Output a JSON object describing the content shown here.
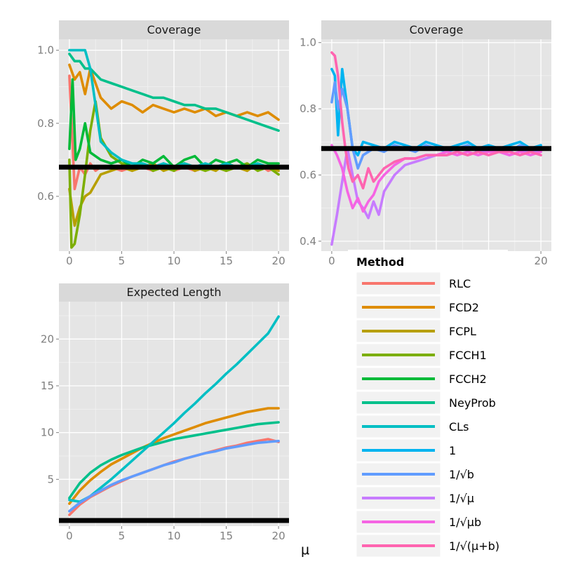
{
  "figure": {
    "xlabel": "μ"
  },
  "chart_data": [
    {
      "type": "line",
      "panel": "top-left",
      "title": "Coverage",
      "xlim": [
        -1,
        21
      ],
      "ylim": [
        0.45,
        1.03
      ],
      "xticks": [
        0,
        5,
        10,
        15,
        20
      ],
      "yticks": [
        0.6,
        0.8,
        1.0
      ],
      "ytick_labels": [
        "0.6",
        "0.8",
        "1.0"
      ],
      "reference_line": 0.68,
      "series": [
        {
          "name": "RLC",
          "x": [
            0,
            0.5,
            1,
            1.5,
            2,
            2.5,
            3,
            4,
            5,
            6,
            7,
            8,
            9,
            10,
            11,
            12,
            13,
            14,
            15,
            16,
            17,
            18,
            19,
            20
          ],
          "values": [
            0.93,
            0.62,
            0.68,
            0.66,
            0.69,
            0.67,
            0.68,
            0.68,
            0.67,
            0.68,
            0.68,
            0.67,
            0.69,
            0.67,
            0.68,
            0.67,
            0.68,
            0.68,
            0.67,
            0.68,
            0.67,
            0.69,
            0.67,
            0.68
          ]
        },
        {
          "name": "FCD2",
          "x": [
            0,
            0.5,
            1,
            1.5,
            2,
            3,
            4,
            5,
            6,
            7,
            8,
            9,
            10,
            11,
            12,
            13,
            14,
            15,
            16,
            17,
            18,
            19,
            20
          ],
          "values": [
            0.96,
            0.92,
            0.94,
            0.88,
            0.95,
            0.87,
            0.84,
            0.86,
            0.85,
            0.83,
            0.85,
            0.84,
            0.83,
            0.84,
            0.83,
            0.84,
            0.82,
            0.83,
            0.82,
            0.83,
            0.82,
            0.83,
            0.81
          ]
        },
        {
          "name": "FCPL",
          "x": [
            0,
            0.5,
            1,
            1.5,
            2,
            3,
            4,
            5,
            6,
            7,
            8,
            9,
            10,
            11,
            12,
            13,
            14,
            15,
            16,
            17,
            18,
            19,
            20
          ],
          "values": [
            0.62,
            0.52,
            0.57,
            0.6,
            0.61,
            0.66,
            0.67,
            0.68,
            0.67,
            0.68,
            0.69,
            0.67,
            0.68,
            0.69,
            0.67,
            0.68,
            0.67,
            0.69,
            0.68,
            0.67,
            0.69,
            0.68,
            0.67
          ]
        },
        {
          "name": "FCCH1",
          "x": [
            0,
            0.2,
            0.5,
            1,
            1.5,
            2,
            2.5,
            3,
            4,
            5,
            6,
            7,
            8,
            9,
            10,
            11,
            12,
            13,
            14,
            15,
            16,
            17,
            18,
            19,
            20
          ],
          "values": [
            0.7,
            0.46,
            0.47,
            0.55,
            0.66,
            0.78,
            0.86,
            0.76,
            0.71,
            0.69,
            0.68,
            0.69,
            0.67,
            0.68,
            0.67,
            0.69,
            0.68,
            0.67,
            0.68,
            0.67,
            0.68,
            0.69,
            0.67,
            0.68,
            0.66
          ]
        },
        {
          "name": "FCCH2",
          "x": [
            0,
            0.3,
            0.6,
            1,
            1.5,
            2,
            3,
            4,
            5,
            6,
            7,
            8,
            9,
            10,
            11,
            12,
            13,
            14,
            15,
            16,
            17,
            18,
            19,
            20
          ],
          "values": [
            0.73,
            0.92,
            0.7,
            0.73,
            0.8,
            0.72,
            0.7,
            0.69,
            0.7,
            0.68,
            0.7,
            0.69,
            0.71,
            0.68,
            0.7,
            0.71,
            0.68,
            0.7,
            0.69,
            0.7,
            0.68,
            0.7,
            0.69,
            0.69
          ]
        },
        {
          "name": "NeyProb",
          "x": [
            0,
            0.5,
            1,
            1.5,
            2,
            3,
            4,
            5,
            6,
            7,
            8,
            9,
            10,
            11,
            12,
            13,
            14,
            15,
            16,
            17,
            18,
            19,
            20
          ],
          "values": [
            0.99,
            0.97,
            0.97,
            0.95,
            0.95,
            0.92,
            0.91,
            0.9,
            0.89,
            0.88,
            0.87,
            0.87,
            0.86,
            0.85,
            0.85,
            0.84,
            0.84,
            0.83,
            0.82,
            0.81,
            0.8,
            0.79,
            0.78
          ]
        },
        {
          "name": "CLs",
          "x": [
            0,
            0.5,
            1,
            1.5,
            2,
            2.5,
            3,
            4,
            5,
            6,
            7,
            8,
            9,
            10,
            11,
            12,
            13,
            14,
            15,
            16,
            17,
            18,
            19,
            20
          ],
          "values": [
            1.0,
            1.0,
            1.0,
            1.0,
            0.95,
            0.85,
            0.75,
            0.72,
            0.7,
            0.69,
            0.69,
            0.68,
            0.69,
            0.68,
            0.69,
            0.68,
            0.69,
            0.68,
            0.69,
            0.68,
            0.68,
            0.69,
            0.68,
            0.68
          ]
        }
      ]
    },
    {
      "type": "line",
      "panel": "top-right",
      "title": "Coverage",
      "xlim": [
        -1,
        21
      ],
      "ylim": [
        0.37,
        1.01
      ],
      "xticks": [
        0,
        20
      ],
      "yticks": [
        0.4,
        0.6,
        0.8,
        1.0
      ],
      "ytick_labels": [
        "0.4",
        "0.6",
        "0.8",
        "1.0"
      ],
      "reference_line": 0.68,
      "series": [
        {
          "name": "1",
          "x": [
            0,
            0.3,
            0.6,
            1,
            1.5,
            2,
            2.5,
            3,
            4,
            5,
            6,
            7,
            8,
            9,
            10,
            11,
            12,
            13,
            14,
            15,
            16,
            17,
            18,
            19,
            20
          ],
          "values": [
            0.92,
            0.9,
            0.72,
            0.92,
            0.8,
            0.68,
            0.66,
            0.7,
            0.69,
            0.68,
            0.7,
            0.69,
            0.68,
            0.7,
            0.69,
            0.68,
            0.69,
            0.7,
            0.68,
            0.69,
            0.68,
            0.69,
            0.7,
            0.68,
            0.69
          ]
        },
        {
          "name": "1/√b",
          "x": [
            0,
            0.3,
            0.6,
            1,
            1.5,
            2,
            2.5,
            3,
            4,
            5,
            6,
            7,
            8,
            9,
            10,
            11,
            12,
            13,
            14,
            15,
            16,
            17,
            18,
            19,
            20
          ],
          "values": [
            0.82,
            0.88,
            0.8,
            0.86,
            0.8,
            0.68,
            0.62,
            0.66,
            0.68,
            0.67,
            0.69,
            0.68,
            0.67,
            0.69,
            0.68,
            0.67,
            0.68,
            0.69,
            0.67,
            0.68,
            0.68,
            0.67,
            0.69,
            0.68,
            0.68
          ]
        },
        {
          "name": "1/√μ",
          "x": [
            0,
            0.5,
            1,
            1.5,
            2,
            2.5,
            3,
            3.5,
            4,
            4.5,
            5,
            6,
            7,
            8,
            9,
            10,
            11,
            12,
            13,
            14,
            15,
            16,
            17,
            18,
            19,
            20
          ],
          "values": [
            0.39,
            0.48,
            0.58,
            0.68,
            0.6,
            0.52,
            0.5,
            0.47,
            0.52,
            0.48,
            0.55,
            0.6,
            0.63,
            0.64,
            0.65,
            0.66,
            0.66,
            0.67,
            0.66,
            0.67,
            0.67,
            0.67,
            0.66,
            0.67,
            0.67,
            0.67
          ]
        },
        {
          "name": "1/√μb",
          "x": [
            0,
            0.5,
            1,
            1.5,
            2,
            2.5,
            3,
            3.5,
            4,
            4.5,
            5,
            6,
            7,
            8,
            9,
            10,
            11,
            12,
            13,
            14,
            15,
            16,
            17,
            18,
            19,
            20
          ],
          "values": [
            0.69,
            0.66,
            0.62,
            0.55,
            0.5,
            0.53,
            0.49,
            0.52,
            0.54,
            0.58,
            0.6,
            0.63,
            0.65,
            0.65,
            0.66,
            0.66,
            0.67,
            0.66,
            0.67,
            0.66,
            0.67,
            0.67,
            0.66,
            0.67,
            0.66,
            0.67
          ]
        },
        {
          "name": "1/√(μ+b)",
          "x": [
            0,
            0.3,
            0.6,
            1,
            1.3,
            1.6,
            2,
            2.5,
            3,
            3.5,
            4,
            5,
            6,
            7,
            8,
            9,
            10,
            11,
            12,
            13,
            14,
            15,
            16,
            17,
            18,
            19,
            20
          ],
          "values": [
            0.97,
            0.96,
            0.9,
            0.76,
            0.68,
            0.62,
            0.58,
            0.6,
            0.56,
            0.62,
            0.58,
            0.62,
            0.64,
            0.65,
            0.65,
            0.66,
            0.66,
            0.66,
            0.67,
            0.66,
            0.67,
            0.66,
            0.67,
            0.67,
            0.66,
            0.67,
            0.66
          ]
        }
      ]
    },
    {
      "type": "line",
      "panel": "bottom-left",
      "title": "Expected Length",
      "xlim": [
        -1,
        21
      ],
      "ylim": [
        0.0,
        24.0
      ],
      "xticks": [
        0,
        5,
        10,
        15,
        20
      ],
      "yticks": [
        5,
        10,
        15,
        20
      ],
      "ytick_labels": [
        "5",
        "10",
        "15",
        "20"
      ],
      "reference_line": 0.6,
      "series": [
        {
          "name": "RLC",
          "x": [
            0,
            1,
            2,
            3,
            4,
            5,
            6,
            7,
            8,
            9,
            10,
            11,
            12,
            13,
            14,
            15,
            16,
            17,
            18,
            19,
            20
          ],
          "values": [
            1.2,
            2.3,
            3.1,
            3.7,
            4.3,
            4.8,
            5.3,
            5.7,
            6.1,
            6.5,
            6.9,
            7.2,
            7.5,
            7.8,
            8.1,
            8.4,
            8.6,
            8.9,
            9.1,
            9.3,
            9.0
          ]
        },
        {
          "name": "FCD2",
          "x": [
            0,
            1,
            2,
            3,
            4,
            5,
            6,
            7,
            8,
            9,
            10,
            11,
            12,
            13,
            14,
            15,
            16,
            17,
            18,
            19,
            20
          ],
          "values": [
            2.4,
            3.8,
            4.9,
            5.8,
            6.6,
            7.2,
            7.8,
            8.4,
            8.9,
            9.4,
            9.8,
            10.2,
            10.6,
            11.0,
            11.3,
            11.6,
            11.9,
            12.2,
            12.4,
            12.6,
            12.6
          ]
        },
        {
          "name": "NeyProb",
          "x": [
            0,
            1,
            2,
            3,
            4,
            5,
            6,
            7,
            8,
            9,
            10,
            11,
            12,
            13,
            14,
            15,
            16,
            17,
            18,
            19,
            20
          ],
          "values": [
            3.0,
            4.6,
            5.7,
            6.5,
            7.1,
            7.6,
            8.0,
            8.4,
            8.7,
            9.0,
            9.3,
            9.5,
            9.7,
            9.9,
            10.1,
            10.3,
            10.5,
            10.7,
            10.9,
            11.0,
            11.1
          ]
        },
        {
          "name": "CLs",
          "x": [
            0,
            1,
            2,
            3,
            4,
            5,
            6,
            7,
            8,
            9,
            10,
            11,
            12,
            13,
            14,
            15,
            16,
            17,
            18,
            19,
            20
          ],
          "values": [
            2.8,
            2.6,
            3.2,
            4.1,
            5.0,
            6.0,
            7.0,
            8.0,
            9.0,
            10.0,
            11.0,
            12.1,
            13.1,
            14.2,
            15.2,
            16.3,
            17.3,
            18.4,
            19.5,
            20.6,
            22.4
          ]
        },
        {
          "name": "1/√b",
          "x": [
            0,
            1,
            2,
            3,
            4,
            5,
            6,
            7,
            8,
            9,
            10,
            11,
            12,
            13,
            14,
            15,
            16,
            17,
            18,
            19,
            20
          ],
          "values": [
            1.6,
            2.5,
            3.2,
            3.8,
            4.4,
            4.9,
            5.3,
            5.7,
            6.1,
            6.5,
            6.8,
            7.2,
            7.5,
            7.8,
            8.0,
            8.3,
            8.5,
            8.7,
            8.9,
            9.0,
            9.1
          ]
        }
      ]
    }
  ],
  "legend": {
    "title": "Method",
    "items": [
      {
        "label": "RLC",
        "color": "#f8766d"
      },
      {
        "label": "FCD2",
        "color": "#de8c00"
      },
      {
        "label": "FCPL",
        "color": "#b79f00"
      },
      {
        "label": "FCCH1",
        "color": "#7cae00"
      },
      {
        "label": "FCCH2",
        "color": "#00ba38"
      },
      {
        "label": "NeyProb",
        "color": "#00c08b"
      },
      {
        "label": "CLs",
        "color": "#00bfc4"
      },
      {
        "label": "1",
        "color": "#00b4f0"
      },
      {
        "label": "1/√b",
        "color": "#619cff"
      },
      {
        "label": "1/√μ",
        "color": "#c77cff"
      },
      {
        "label": "1/√μb",
        "color": "#f564e3"
      },
      {
        "label": "1/√(μ+b)",
        "color": "#ff64b0"
      }
    ]
  }
}
